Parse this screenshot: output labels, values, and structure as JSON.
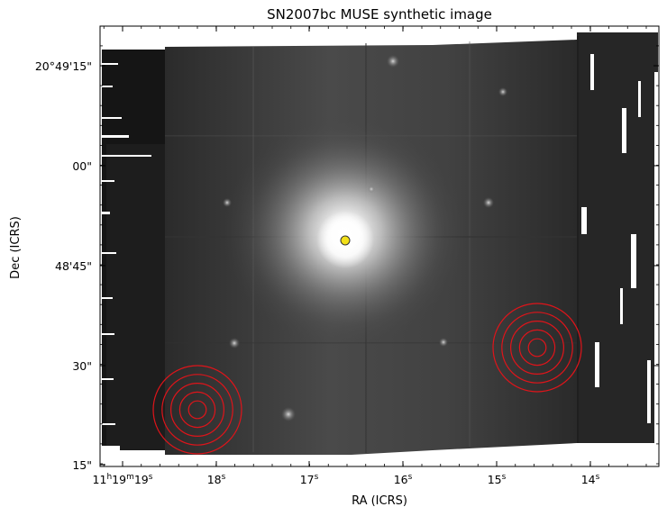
{
  "figure": {
    "title": "SN2007bc MUSE synthetic image",
    "xlabel": "RA (ICRS)",
    "ylabel": "Dec (ICRS)",
    "x_ticks": [
      {
        "main": "11",
        "sup_h": "h",
        "mid": "19",
        "sup_m": "m",
        "tail": "19",
        "sup_s": "s"
      },
      {
        "main": "18",
        "sup_s": "s"
      },
      {
        "main": "17",
        "sup_s": "s"
      },
      {
        "main": "16",
        "sup_s": "s"
      },
      {
        "main": "15",
        "sup_s": "s"
      },
      {
        "main": "14",
        "sup_s": "s"
      }
    ],
    "y_ticks": [
      "20°49'15\"",
      "00\"",
      "48'45\"",
      "30\"",
      "15\""
    ],
    "marker_color": "#f2e019",
    "ring_color": "#e0141a",
    "apertures": [
      {
        "name": "aperture-lower-left",
        "rings": 5
      },
      {
        "name": "aperture-right",
        "rings": 5
      }
    ]
  }
}
